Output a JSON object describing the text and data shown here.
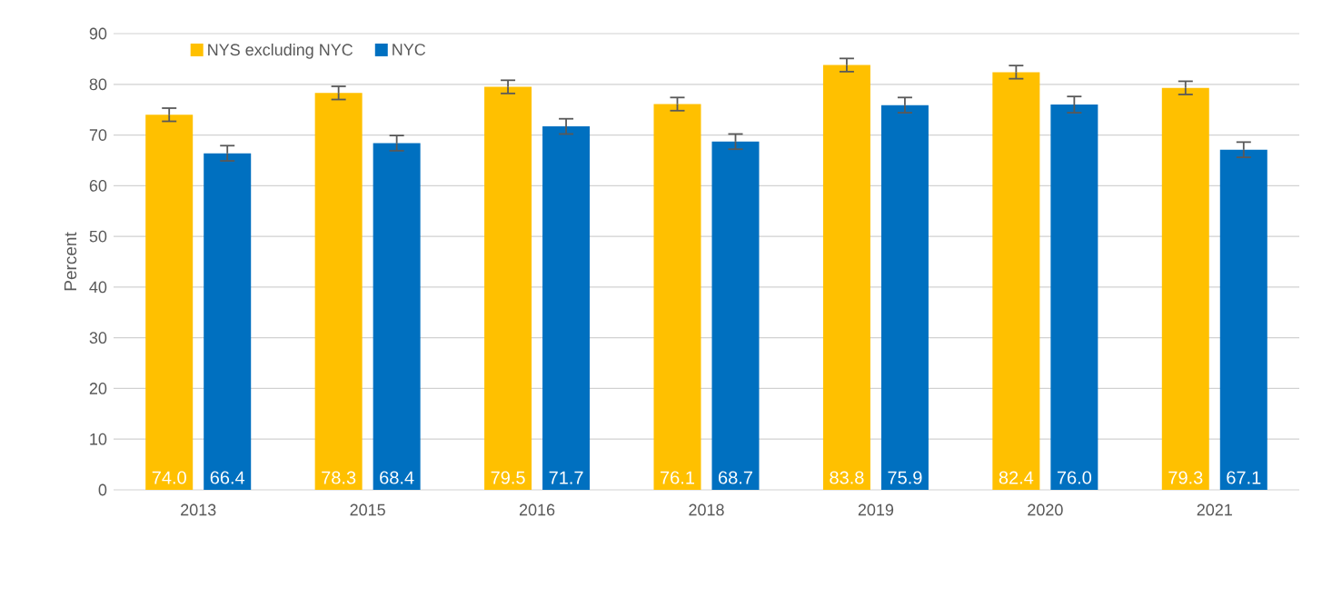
{
  "chart_data": {
    "type": "bar",
    "ylabel": "Percent",
    "categories": [
      "2013",
      "2015",
      "2016",
      "2018",
      "2019",
      "2020",
      "2021"
    ],
    "series": [
      {
        "name": "NYS excluding NYC",
        "color": "#ffc000",
        "values": [
          74.0,
          78.3,
          79.5,
          76.1,
          83.8,
          82.4,
          79.3
        ],
        "errors": [
          1.3,
          1.3,
          1.3,
          1.3,
          1.3,
          1.3,
          1.3
        ],
        "value_labels": [
          "74.0",
          "78.3",
          "79.5",
          "76.1",
          "83.8",
          "82.4",
          "79.3"
        ]
      },
      {
        "name": "NYC",
        "color": "#0070c0",
        "values": [
          66.4,
          68.4,
          71.7,
          68.7,
          75.9,
          76.0,
          67.1
        ],
        "errors": [
          1.5,
          1.5,
          1.5,
          1.5,
          1.5,
          1.6,
          1.5
        ],
        "value_labels": [
          "66.4",
          "68.4",
          "71.7",
          "68.7",
          "75.9",
          "76.0",
          "67.1"
        ]
      }
    ],
    "ylim": [
      0,
      90
    ],
    "yticks": [
      0,
      10,
      20,
      30,
      40,
      50,
      60,
      70,
      80,
      90
    ],
    "grid": "y",
    "legend": "top left"
  }
}
